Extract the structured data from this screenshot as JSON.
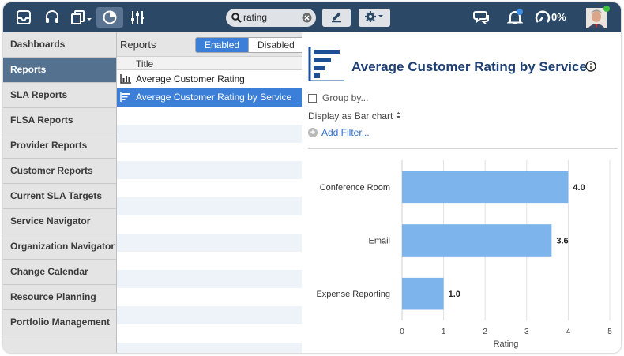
{
  "topbar": {
    "search_value": "rating",
    "progress_label": "0%",
    "icons": [
      "inbox-icon",
      "headset-icon",
      "copy-menu-icon",
      "pie-chart-icon",
      "sliders-icon",
      "search-icon",
      "clear-icon",
      "pencil-icon",
      "gear-icon",
      "chat-icon",
      "bell-icon",
      "gauge-icon"
    ]
  },
  "sidebar": {
    "items": [
      {
        "label": "Dashboards",
        "active": false
      },
      {
        "label": "Reports",
        "active": true
      },
      {
        "label": "SLA Reports",
        "active": false
      },
      {
        "label": "FLSA Reports",
        "active": false
      },
      {
        "label": "Provider Reports",
        "active": false
      },
      {
        "label": "Customer Reports",
        "active": false
      },
      {
        "label": "Current SLA Targets",
        "active": false
      },
      {
        "label": "Service Navigator",
        "active": false
      },
      {
        "label": "Organization Navigator",
        "active": false
      },
      {
        "label": "Change Calendar",
        "active": false
      },
      {
        "label": "Resource Planning",
        "active": false
      },
      {
        "label": "Portfolio Management",
        "active": false
      }
    ]
  },
  "reports": {
    "heading": "Reports",
    "toggle": {
      "enabled": "Enabled",
      "disabled": "Disabled"
    },
    "column_title": "Title",
    "rows": [
      {
        "label": "Average Customer Rating",
        "icon": "column-chart-icon",
        "selected": false
      },
      {
        "label": "Average Customer Rating by Service",
        "icon": "bar-chart-icon",
        "selected": true
      }
    ]
  },
  "detail": {
    "title": "Average Customer Rating by Service",
    "group_by": "Group by...",
    "display_as": "Display as Bar chart",
    "add_filter": "Add Filter..."
  },
  "colors": {
    "topbar": "#2b4866",
    "sidebar_active": "#54718f",
    "selection": "#3b7fd9",
    "title": "#1d3f72",
    "bar": "#7eb4ec"
  },
  "chart_data": {
    "type": "bar",
    "orientation": "horizontal",
    "categories": [
      "Conference Room",
      "Email",
      "Expense Reporting"
    ],
    "values": [
      4.0,
      3.6,
      1.0
    ],
    "value_labels": [
      "4.0",
      "3.6",
      "1.0"
    ],
    "xlabel": "Rating",
    "xlim": [
      0,
      5
    ],
    "xticks": [
      "0",
      "1",
      "2",
      "3",
      "4",
      "5"
    ],
    "grid": true
  }
}
